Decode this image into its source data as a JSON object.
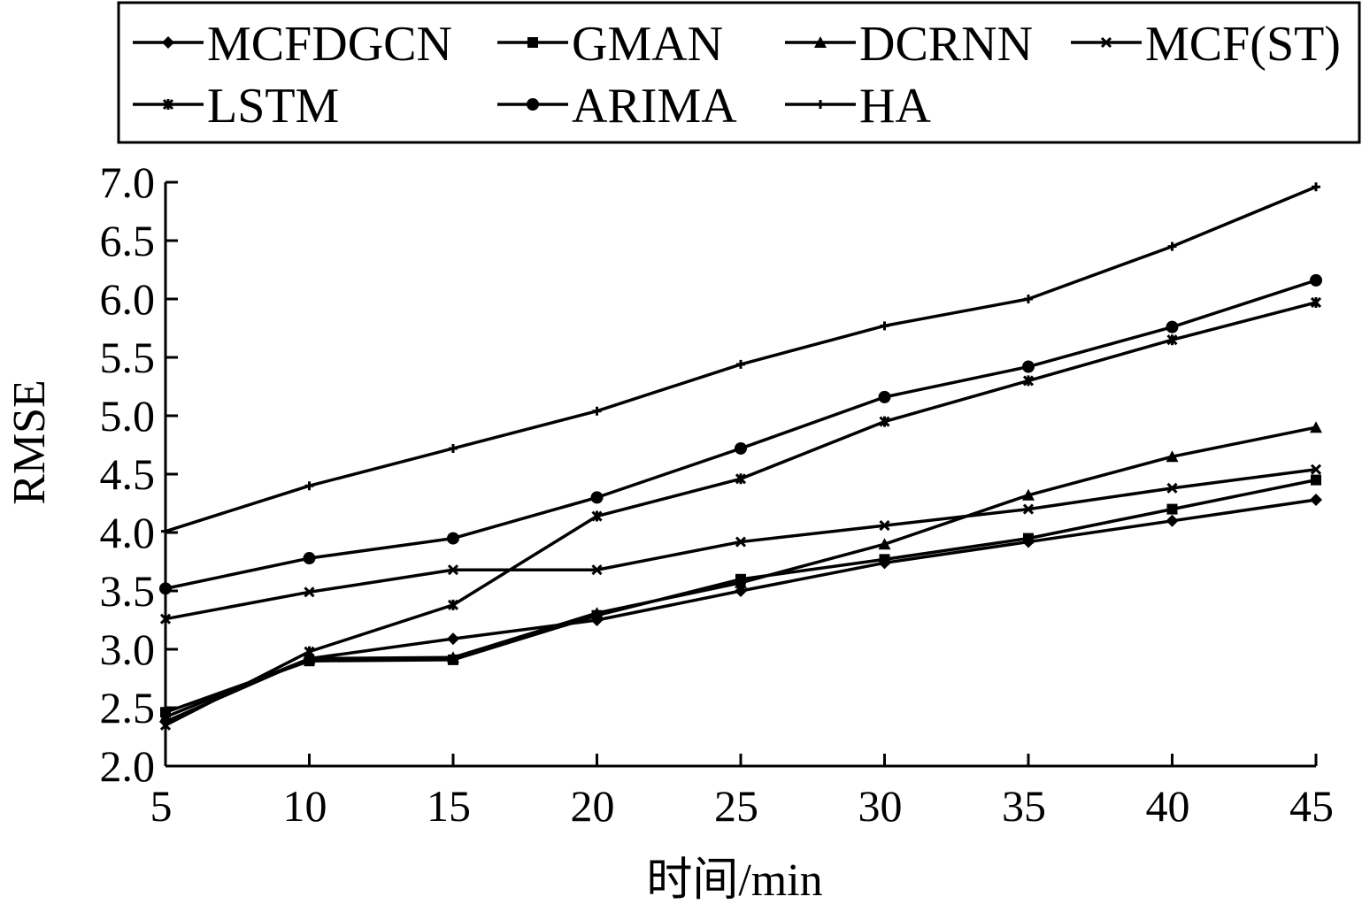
{
  "chart_data": {
    "type": "line",
    "title": "",
    "xlabel": "时间/min",
    "ylabel": "RMSE",
    "x": [
      5,
      10,
      15,
      20,
      25,
      30,
      35,
      40,
      45
    ],
    "xlim": [
      5,
      45
    ],
    "ylim": [
      2.0,
      7.0
    ],
    "yticks": [
      "2.0",
      "2.5",
      "3.0",
      "3.5",
      "4.0",
      "4.5",
      "5.0",
      "5.5",
      "6.0",
      "6.5",
      "7.0"
    ],
    "xticks": [
      "5",
      "10",
      "15",
      "20",
      "25",
      "30",
      "35",
      "40",
      "45"
    ],
    "grid": false,
    "legend_position": "top",
    "series": [
      {
        "name": "MCFDGCN",
        "marker": "diamond",
        "values": [
          2.38,
          2.92,
          3.09,
          3.25,
          3.5,
          3.74,
          3.92,
          4.1,
          4.28
        ]
      },
      {
        "name": "GMAN",
        "marker": "square",
        "values": [
          2.46,
          2.9,
          2.91,
          3.29,
          3.6,
          3.77,
          3.95,
          4.2,
          4.45
        ]
      },
      {
        "name": "DCRNN",
        "marker": "triangle",
        "values": [
          2.42,
          2.92,
          2.93,
          3.31,
          3.57,
          3.9,
          4.32,
          4.65,
          4.9
        ]
      },
      {
        "name": "MCF(ST)",
        "marker": "x",
        "values": [
          3.26,
          3.49,
          3.68,
          3.68,
          3.92,
          4.06,
          4.2,
          4.38,
          4.54
        ]
      },
      {
        "name": "LSTM",
        "marker": "star",
        "values": [
          2.35,
          2.98,
          3.38,
          4.14,
          4.46,
          4.95,
          5.3,
          5.65,
          5.97
        ]
      },
      {
        "name": "ARIMA",
        "marker": "circle",
        "values": [
          3.52,
          3.78,
          3.95,
          4.3,
          4.72,
          5.16,
          5.42,
          5.76,
          6.16
        ]
      },
      {
        "name": "HA",
        "marker": "plus",
        "values": [
          4.01,
          4.4,
          4.72,
          5.04,
          5.44,
          5.77,
          6.0,
          6.45,
          6.96
        ]
      }
    ]
  }
}
